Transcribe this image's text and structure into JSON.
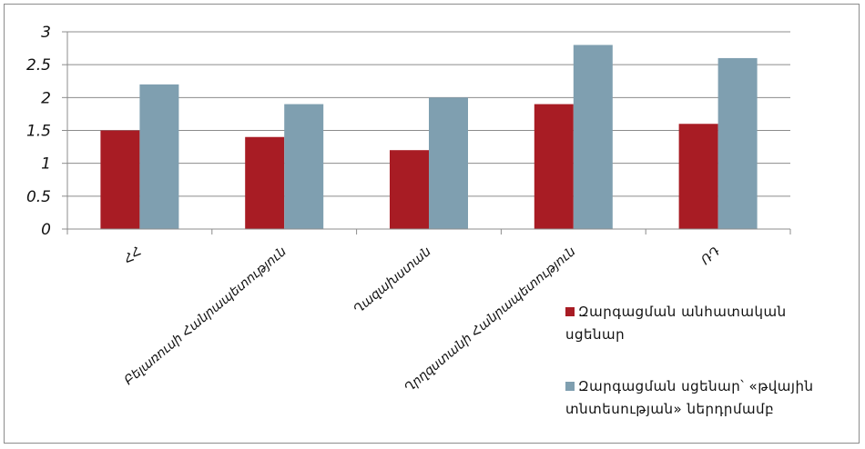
{
  "chart_data": {
    "type": "bar",
    "categories": [
      "ՀՀ",
      "Բելառուսի Հանրապետություն",
      "Ղազախստան",
      "Ղրղզստանի Հանրապետություն",
      "ՌԴ"
    ],
    "series": [
      {
        "name": "Զարգացման անհատական սցենար",
        "color": "#a81c24",
        "values": [
          1.5,
          1.4,
          1.2,
          1.9,
          1.6
        ]
      },
      {
        "name": "Զարգացման սցենար՝ «թվային տնտեսության» ներդրմամբ",
        "color": "#7f9fb0",
        "values": [
          2.2,
          1.9,
          2.0,
          2.8,
          2.6
        ]
      }
    ],
    "yticks": [
      "0",
      "0.5",
      "1",
      "1.5",
      "2",
      "2.5",
      "3"
    ],
    "ylim": [
      0,
      3
    ],
    "grid": true,
    "legend_position": "right",
    "title": "",
    "xlabel": "",
    "ylabel": ""
  }
}
